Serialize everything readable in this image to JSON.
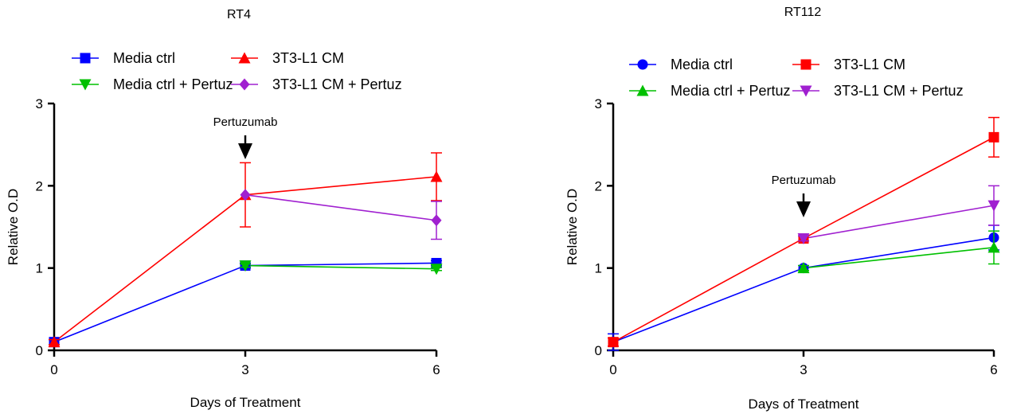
{
  "chart_data": [
    {
      "type": "line",
      "title": "RT4",
      "xlabel": "Days of Treatment",
      "ylabel": "Relative O.D",
      "x": [
        0,
        3,
        6
      ],
      "xticks": [
        "0",
        "3",
        "6"
      ],
      "yticks": [
        "0",
        "1",
        "2",
        "3"
      ],
      "xlim": [
        0,
        6
      ],
      "ylim": [
        0,
        3
      ],
      "grid": false,
      "legend_placement": "top",
      "annotation": {
        "text": "Pertuzumab",
        "x": 3
      },
      "series": [
        {
          "name": "Media ctrl",
          "color": "#0000ff",
          "marker": "square",
          "values": [
            0.1,
            1.03,
            1.06
          ],
          "errors": [
            0.03,
            0.03,
            0.03
          ]
        },
        {
          "name": "3T3-L1 CM",
          "color": "#ff0000",
          "marker": "triangle-up",
          "values": [
            0.1,
            1.89,
            2.11
          ],
          "errors": [
            0.03,
            0.39,
            0.29
          ]
        },
        {
          "name": "Media ctrl + Pertuz",
          "color": "#00c000",
          "marker": "triangle-down",
          "values": [
            null,
            1.03,
            0.99
          ],
          "errors": [
            null,
            0.02,
            0.02
          ]
        },
        {
          "name": "3T3-L1 CM + Pertuz",
          "color": "#a020d0",
          "marker": "diamond",
          "values": [
            null,
            1.89,
            1.58
          ],
          "errors": [
            null,
            0.0,
            0.23
          ]
        }
      ]
    },
    {
      "type": "line",
      "title": "RT112",
      "xlabel": "Days of Treatment",
      "ylabel": "Relative O.D",
      "x": [
        0,
        3,
        6
      ],
      "xticks": [
        "0",
        "3",
        "6"
      ],
      "yticks": [
        "0",
        "1",
        "2",
        "3"
      ],
      "xlim": [
        0,
        6
      ],
      "ylim": [
        0,
        3
      ],
      "grid": false,
      "legend_placement": "top",
      "annotation": {
        "text": "Pertuzumab",
        "x": 3
      },
      "series": [
        {
          "name": "Media ctrl",
          "color": "#0000ff",
          "marker": "circle",
          "values": [
            0.1,
            1.0,
            1.37
          ],
          "errors": [
            0.1,
            0.03,
            0.15
          ]
        },
        {
          "name": "3T3-L1 CM",
          "color": "#ff0000",
          "marker": "square",
          "values": [
            0.1,
            1.36,
            2.59
          ],
          "errors": [
            0.05,
            0.03,
            0.24
          ]
        },
        {
          "name": "Media ctrl + Pertuz",
          "color": "#00c000",
          "marker": "triangle-up",
          "values": [
            null,
            1.0,
            1.25
          ],
          "errors": [
            null,
            0.03,
            0.2
          ]
        },
        {
          "name": "3T3-L1 CM + Pertuz",
          "color": "#a020d0",
          "marker": "triangle-down",
          "values": [
            null,
            1.36,
            1.76
          ],
          "errors": [
            null,
            0.03,
            0.24
          ]
        }
      ]
    }
  ]
}
